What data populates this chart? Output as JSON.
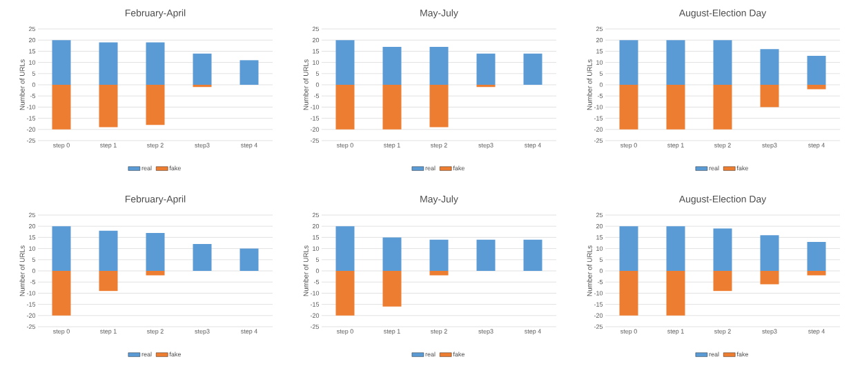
{
  "chart_data": [
    {
      "type": "bar",
      "title": "February-April",
      "ylabel": "Number of URLs",
      "categories": [
        "step 0",
        "step 1",
        "step 2",
        "step3",
        "step 4"
      ],
      "stacked": true,
      "ylim": [
        -25,
        25
      ],
      "yticks": [
        -25,
        -20,
        -15,
        -10,
        -5,
        0,
        5,
        10,
        15,
        20,
        25
      ],
      "grid": "y",
      "legend": "bottom",
      "series": [
        {
          "name": "real",
          "color": "#5b9bd5",
          "values": [
            20,
            19,
            19,
            14,
            11
          ]
        },
        {
          "name": "fake",
          "color": "#ed7d31",
          "values": [
            -20,
            -19,
            -18,
            -1,
            0
          ]
        }
      ]
    },
    {
      "type": "bar",
      "title": "May-July",
      "ylabel": "Number of URLs",
      "categories": [
        "step 0",
        "step 1",
        "step 2",
        "step3",
        "step 4"
      ],
      "stacked": true,
      "ylim": [
        -25,
        25
      ],
      "yticks": [
        -25,
        -20,
        -15,
        -10,
        -5,
        0,
        5,
        10,
        15,
        20,
        25
      ],
      "grid": "y",
      "legend": "bottom",
      "series": [
        {
          "name": "real",
          "color": "#5b9bd5",
          "values": [
            20,
            17,
            17,
            14,
            14
          ]
        },
        {
          "name": "fake",
          "color": "#ed7d31",
          "values": [
            -20,
            -20,
            -19,
            -1,
            0
          ]
        }
      ]
    },
    {
      "type": "bar",
      "title": "August-Election Day",
      "ylabel": "Number of URLs",
      "categories": [
        "step 0",
        "step 1",
        "step 2",
        "step3",
        "step 4"
      ],
      "stacked": true,
      "ylim": [
        -25,
        25
      ],
      "yticks": [
        -25,
        -20,
        -15,
        -10,
        -5,
        0,
        5,
        10,
        15,
        20,
        25
      ],
      "grid": "y",
      "legend": "bottom",
      "series": [
        {
          "name": "real",
          "color": "#5b9bd5",
          "values": [
            20,
            20,
            20,
            16,
            13
          ]
        },
        {
          "name": "fake",
          "color": "#ed7d31",
          "values": [
            -20,
            -20,
            -20,
            -10,
            -2
          ]
        }
      ]
    },
    {
      "type": "bar",
      "title": "February-April",
      "ylabel": "Number of URLs",
      "categories": [
        "step 0",
        "step 1",
        "step 2",
        "step3",
        "step 4"
      ],
      "stacked": true,
      "ylim": [
        -25,
        25
      ],
      "yticks": [
        -25,
        -20,
        -15,
        -10,
        -5,
        0,
        5,
        10,
        15,
        20,
        25
      ],
      "grid": "y",
      "legend": "bottom",
      "series": [
        {
          "name": "real",
          "color": "#5b9bd5",
          "values": [
            20,
            18,
            17,
            12,
            10
          ]
        },
        {
          "name": "fake",
          "color": "#ed7d31",
          "values": [
            -20,
            -9,
            -2,
            0,
            0
          ]
        }
      ]
    },
    {
      "type": "bar",
      "title": "May-July",
      "ylabel": "Number of URLs",
      "categories": [
        "step 0",
        "step 1",
        "step 2",
        "step3",
        "step 4"
      ],
      "stacked": true,
      "ylim": [
        -25,
        25
      ],
      "yticks": [
        -25,
        -20,
        -15,
        -10,
        -5,
        0,
        5,
        10,
        15,
        20,
        25
      ],
      "grid": "y",
      "legend": "bottom",
      "series": [
        {
          "name": "real",
          "color": "#5b9bd5",
          "values": [
            20,
            15,
            14,
            14,
            14
          ]
        },
        {
          "name": "fake",
          "color": "#ed7d31",
          "values": [
            -20,
            -16,
            -2,
            0,
            0
          ]
        }
      ]
    },
    {
      "type": "bar",
      "title": "August-Election Day",
      "ylabel": "Number of URLs",
      "categories": [
        "step 0",
        "step 1",
        "step 2",
        "step3",
        "step 4"
      ],
      "stacked": true,
      "ylim": [
        -25,
        25
      ],
      "yticks": [
        -25,
        -20,
        -15,
        -10,
        -5,
        0,
        5,
        10,
        15,
        20,
        25
      ],
      "grid": "y",
      "legend": "bottom",
      "series": [
        {
          "name": "real",
          "color": "#5b9bd5",
          "values": [
            20,
            20,
            19,
            16,
            13
          ]
        },
        {
          "name": "fake",
          "color": "#ed7d31",
          "values": [
            -20,
            -20,
            -9,
            -6,
            -2
          ]
        }
      ]
    }
  ]
}
